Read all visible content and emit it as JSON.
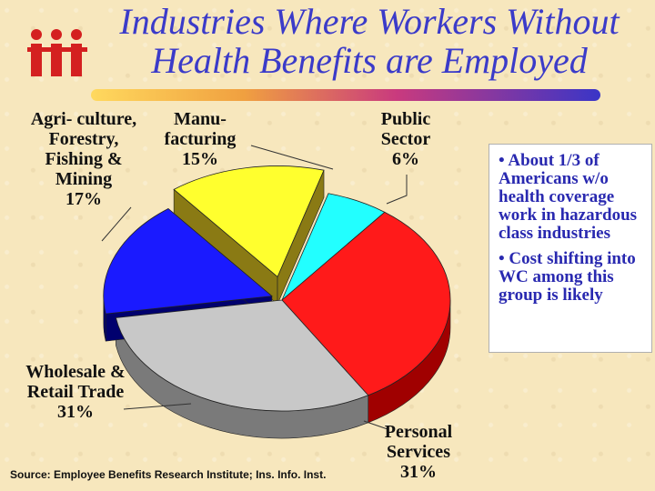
{
  "title": {
    "line1": "Industries Where Workers Without",
    "line2": "Health Benefits are Employed"
  },
  "bullets": [
    "• About 1/3 of Americans w/o health coverage work in hazardous class industries",
    "• Cost shifting into WC among this group is likely"
  ],
  "source": "Source: Employee Benefits Research Institute; Ins. Info. Inst.",
  "colors": {
    "title": "#3b3bc9",
    "bullet_text": "#2929b0",
    "background": "#f7e7bd"
  },
  "chart_data": {
    "type": "pie",
    "style": "3d exploded",
    "slices": [
      {
        "label": "Manu- facturing",
        "pct_label": "15%",
        "value": 15,
        "color": "#ffff2e",
        "side": "#8a7a14"
      },
      {
        "label": "Public Sector",
        "pct_label": "6%",
        "value": 6,
        "color": "#22ffff",
        "side": "#108080"
      },
      {
        "label": "Personal Services",
        "pct_label": "31%",
        "value": 31,
        "color": "#ff1a1a",
        "side": "#a00000"
      },
      {
        "label": "Wholesale & Retail Trade",
        "pct_label": "31%",
        "value": 31,
        "color": "#c8c8c8",
        "side": "#7a7a7a"
      },
      {
        "label": "Agri- culture, Forestry, Fishing & Mining",
        "pct_label": "17%",
        "value": 17,
        "color": "#1a1aff",
        "side": "#00006e"
      }
    ]
  }
}
